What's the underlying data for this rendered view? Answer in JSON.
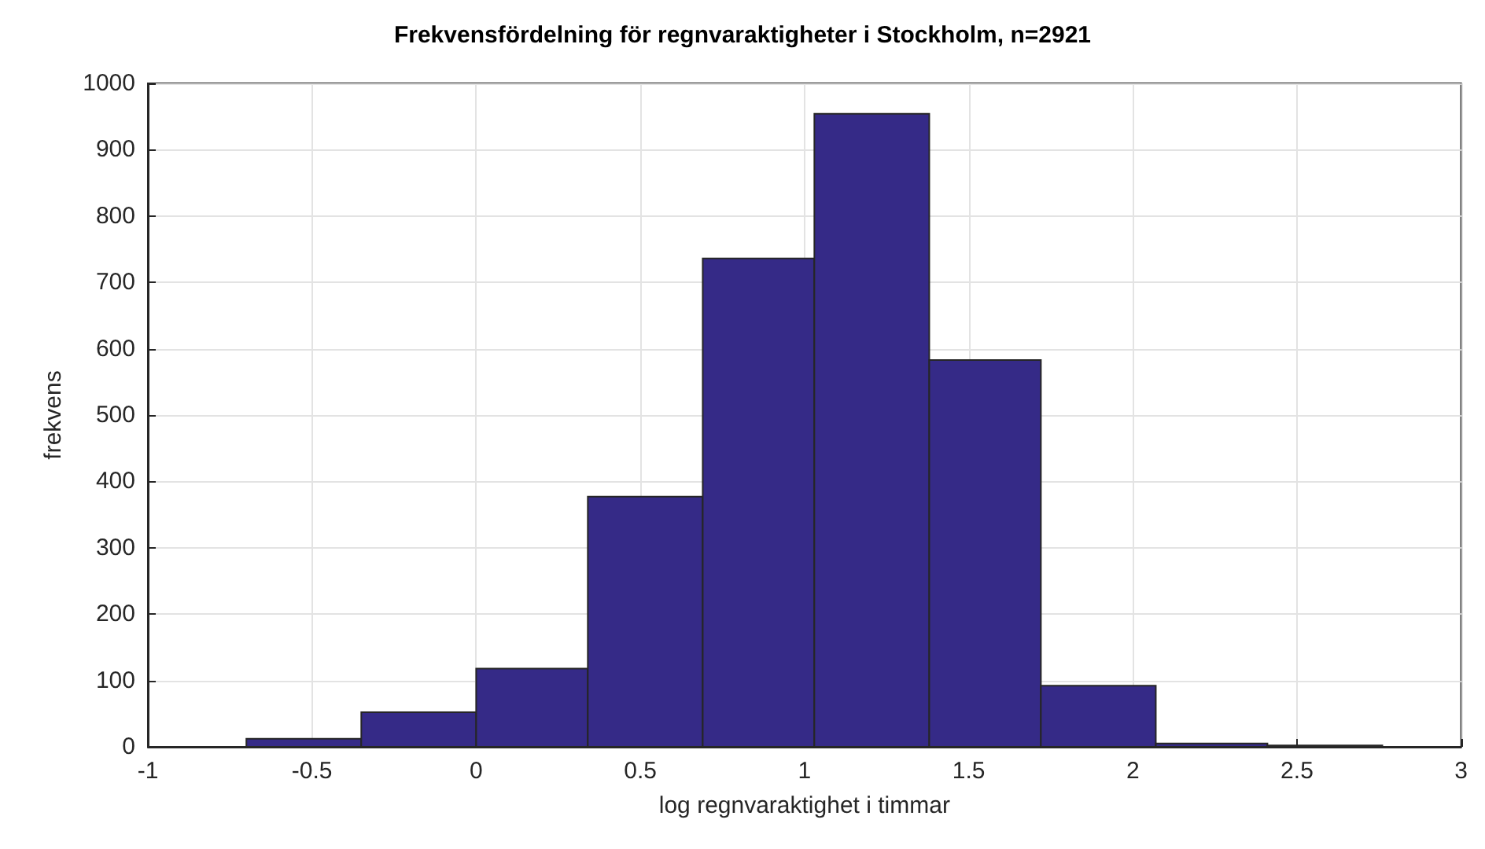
{
  "chart_data": {
    "type": "histogram",
    "title": "Frekvensfördelning för regnvaraktigheter i Stockholm, n=2921",
    "xlabel": "log regnvaraktighet i timmar",
    "ylabel": "frekvens",
    "bins": [
      -0.7,
      -0.35,
      0.0,
      0.34,
      0.69,
      1.03,
      1.38,
      1.72,
      2.07,
      2.41,
      2.76
    ],
    "values": [
      12,
      52,
      118,
      377,
      736,
      954,
      583,
      92,
      5,
      2
    ],
    "color": "#352a87",
    "xlim": [
      -1,
      3
    ],
    "xticks": [
      -1,
      -0.5,
      0,
      0.5,
      1,
      1.5,
      2,
      2.5,
      3
    ],
    "ylim": [
      0,
      1000
    ],
    "yticks": [
      0,
      100,
      200,
      300,
      400,
      500,
      600,
      700,
      800,
      900,
      1000
    ],
    "grid": true
  }
}
